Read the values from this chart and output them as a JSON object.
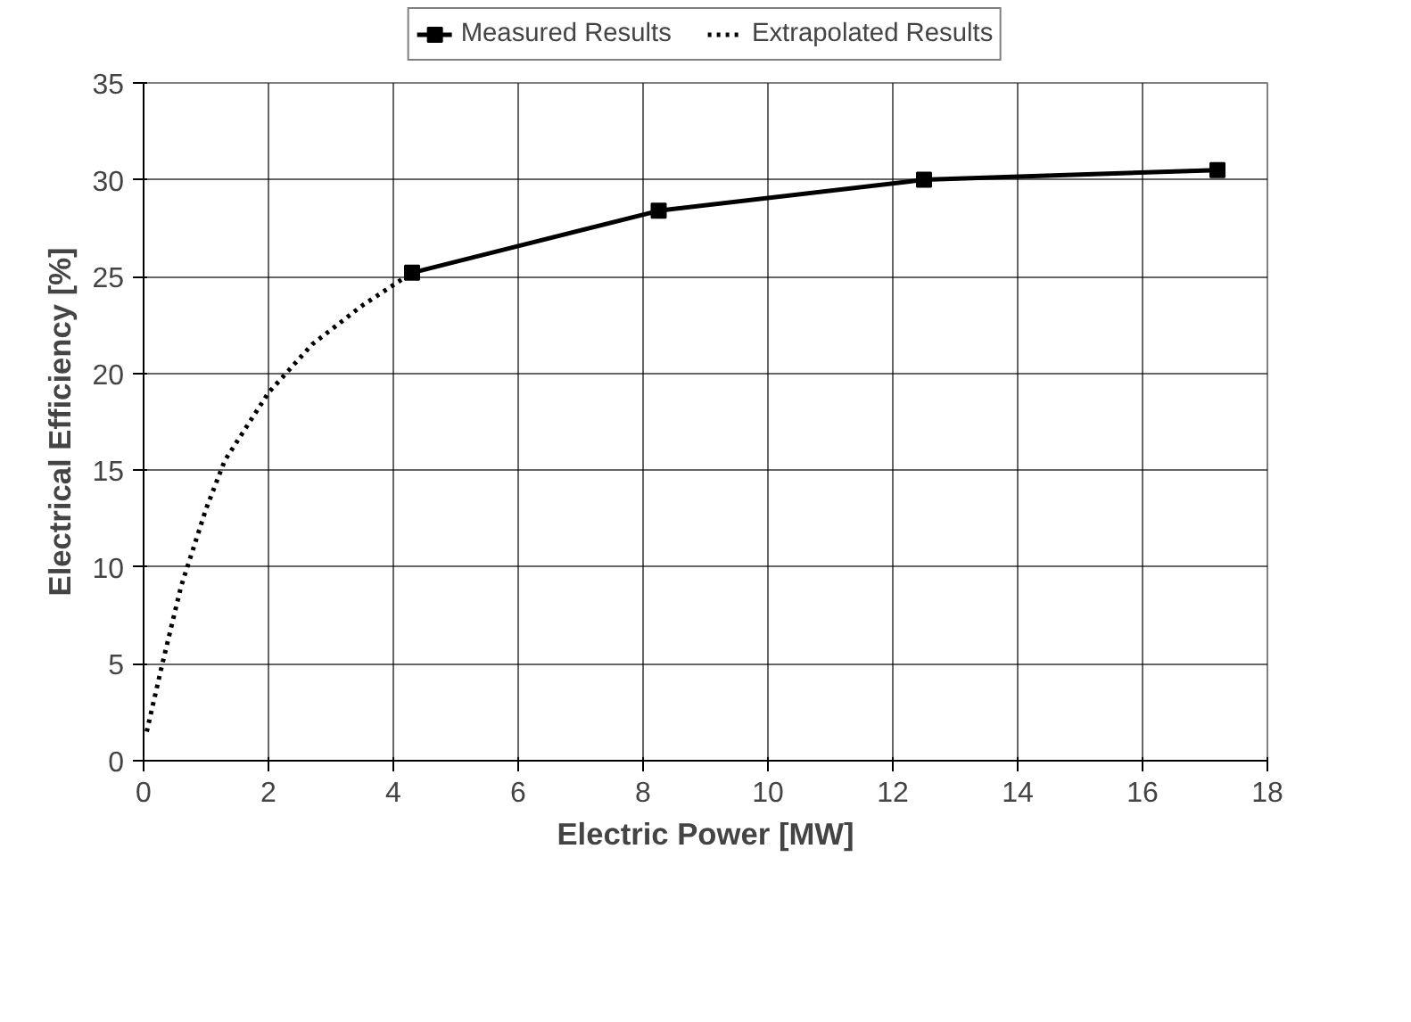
{
  "chart_data": {
    "type": "line",
    "xlabel": "Electric Power [MW]",
    "ylabel": "Electrical Efficiency [%]",
    "xlim": [
      0,
      18
    ],
    "ylim": [
      0,
      35
    ],
    "xticks": [
      0,
      2,
      4,
      6,
      8,
      10,
      12,
      14,
      16,
      18
    ],
    "yticks": [
      0,
      5,
      10,
      15,
      20,
      25,
      30,
      35
    ],
    "grid": true,
    "legend": "top",
    "series": [
      {
        "name": "Measured Results",
        "color": "#000000",
        "marker": "square",
        "line_style": "solid",
        "x": [
          4.3,
          8.25,
          12.5,
          17.2
        ],
        "values": [
          25.2,
          28.4,
          30.0,
          30.5
        ]
      },
      {
        "name": "Extrapolated Results",
        "color": "#000000",
        "marker": "none",
        "line_style": "dotted",
        "x": [
          0.05,
          0.3,
          0.6,
          1.0,
          1.3,
          2.0,
          2.7,
          3.5,
          4.3
        ],
        "values": [
          1.5,
          5,
          9,
          13,
          15.5,
          19,
          21.5,
          23.5,
          25.2
        ]
      }
    ]
  }
}
